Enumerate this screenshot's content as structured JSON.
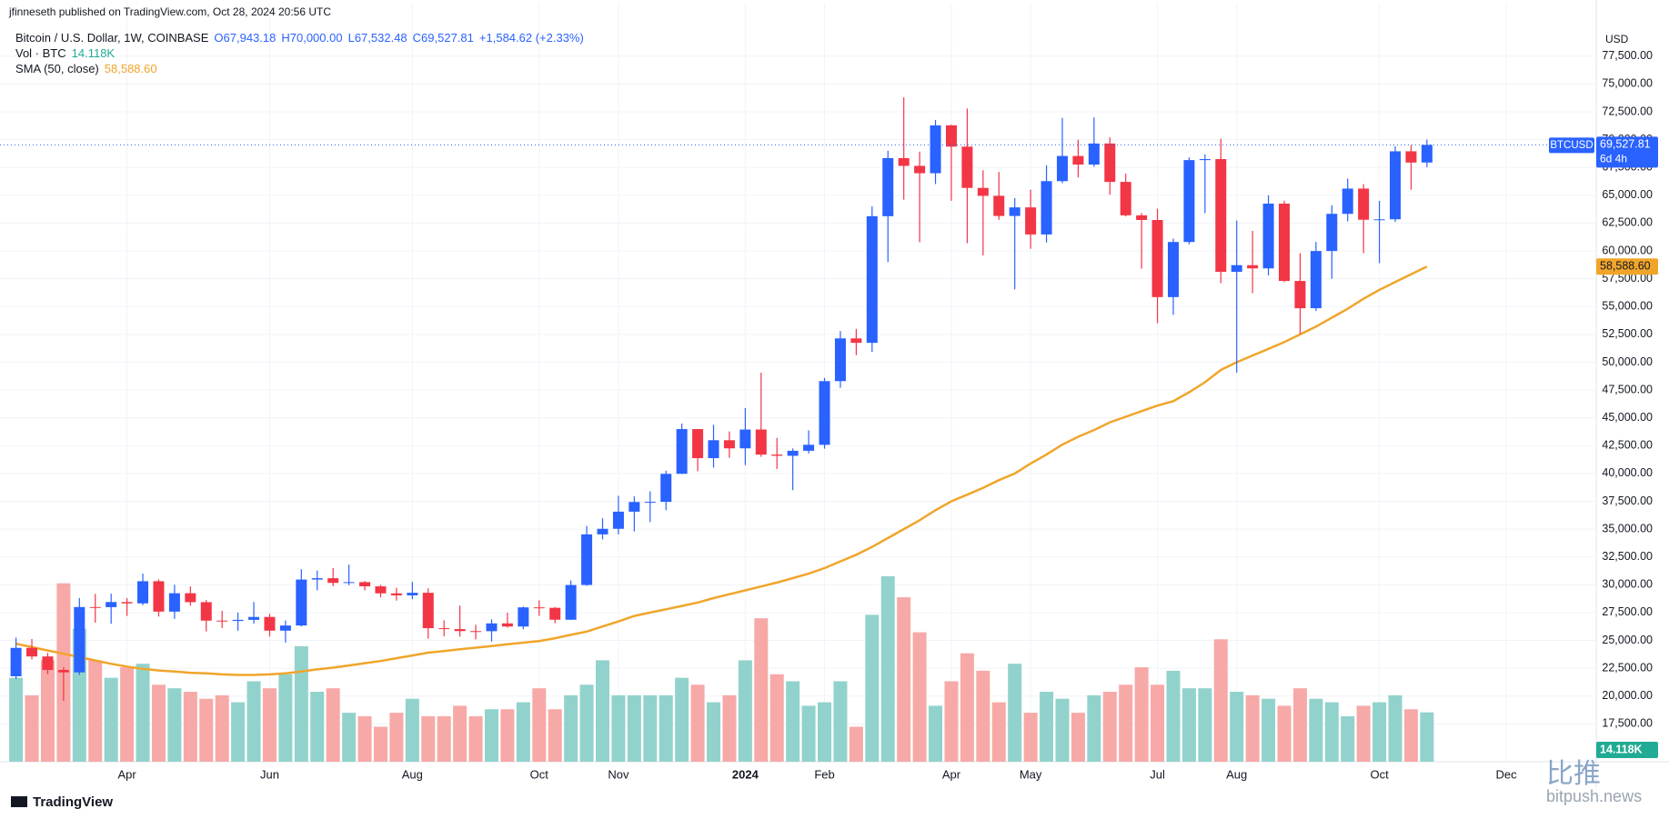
{
  "header": "jfinneseth published on TradingView.com, Oct 28, 2024 20:56 UTC",
  "footer": "TradingView",
  "watermark": {
    "brand": "比推",
    "site": "bitpush.news"
  },
  "chart_data": {
    "type": "candlestick",
    "title": "Bitcoin / U.S. Dollar, 1W, COINBASE",
    "ohlc_labels": [
      "O67,943.18",
      "H70,000.00",
      "L67,532.48",
      "C69,527.81"
    ],
    "change_label": "+1,584.62 (+2.33%)",
    "y_axis_label": "USD",
    "up_color": "#2962ff",
    "down_color": "#f23645",
    "grid": true,
    "ylim": [
      14100,
      79850
    ],
    "yticks": [
      {
        "value": 17500,
        "label": "17,500.00"
      },
      {
        "value": 20000,
        "label": "20,000.00"
      },
      {
        "value": 22500,
        "label": "22,500.00"
      },
      {
        "value": 25000,
        "label": "25,000.00"
      },
      {
        "value": 27500,
        "label": "27,500.00"
      },
      {
        "value": 30000,
        "label": "30,000.00"
      },
      {
        "value": 32500,
        "label": "32,500.00"
      },
      {
        "value": 35000,
        "label": "35,000.00"
      },
      {
        "value": 37500,
        "label": "37,500.00"
      },
      {
        "value": 40000,
        "label": "40,000.00"
      },
      {
        "value": 42500,
        "label": "42,500.00"
      },
      {
        "value": 45000,
        "label": "45,000.00"
      },
      {
        "value": 47500,
        "label": "47,500.00"
      },
      {
        "value": 50000,
        "label": "50,000.00"
      },
      {
        "value": 52500,
        "label": "52,500.00"
      },
      {
        "value": 55000,
        "label": "55,000.00"
      },
      {
        "value": 57500,
        "label": "57,500.00"
      },
      {
        "value": 60000,
        "label": "60,000.00"
      },
      {
        "value": 62500,
        "label": "62,500.00"
      },
      {
        "value": 65000,
        "label": "65,000.00"
      },
      {
        "value": 67500,
        "label": "67,500.00"
      },
      {
        "value": 70000,
        "label": "70,000.00"
      },
      {
        "value": 72500,
        "label": "72,500.00"
      },
      {
        "value": 75000,
        "label": "75,000.00"
      },
      {
        "value": 77500,
        "label": "77,500.00"
      }
    ],
    "categories": [
      null,
      null,
      null,
      null,
      null,
      null,
      null,
      "Apr",
      null,
      null,
      null,
      null,
      null,
      null,
      null,
      null,
      "Jun",
      null,
      null,
      null,
      null,
      null,
      null,
      null,
      null,
      "Aug",
      null,
      null,
      null,
      null,
      null,
      null,
      null,
      "Oct",
      null,
      null,
      null,
      null,
      "Nov",
      null,
      null,
      null,
      null,
      null,
      null,
      null,
      "2024",
      null,
      null,
      null,
      null,
      "Feb",
      null,
      null,
      null,
      null,
      null,
      null,
      null,
      "Apr",
      null,
      null,
      null,
      null,
      "May",
      null,
      null,
      null,
      null,
      null,
      null,
      null,
      "Jul",
      null,
      null,
      null,
      null,
      "Aug",
      null,
      null,
      null,
      null,
      null,
      null,
      null,
      null,
      "Oct",
      null,
      null,
      null,
      null,
      null,
      null,
      null,
      "Dec"
    ],
    "open": [
      21780,
      24330,
      23560,
      22350,
      22130,
      28000,
      27990,
      28450,
      28330,
      30320,
      27590,
      29240,
      28440,
      26780,
      26750,
      26850,
      27110,
      25880,
      26340,
      30470,
      30590,
      30170,
      30240,
      29860,
      29230,
      29050,
      29280,
      26100,
      26020,
      25840,
      25830,
      26530,
      26250,
      27970,
      27930,
      26860,
      29980,
      34530,
      35030,
      36570,
      37440,
      37450,
      39970,
      43990,
      41380,
      42990,
      42260,
      43950,
      41700,
      41590,
      42040,
      42580,
      48300,
      52140,
      51740,
      63120,
      68340,
      67640,
      66980,
      71280,
      69370,
      65660,
      64950,
      63140,
      63910,
      61480,
      66270,
      68530,
      67760,
      69650,
      66200,
      63200,
      62780,
      55850,
      60800,
      68160,
      68250,
      58120,
      58720,
      58430,
      64250,
      57300,
      54850,
      59990,
      63330,
      65600,
      62800,
      62840,
      68950,
      67943.18,
      null,
      null,
      null,
      null,
      null
    ],
    "high": [
      25250,
      25130,
      23880,
      22600,
      28800,
      29180,
      29200,
      28800,
      31000,
      30480,
      30000,
      29860,
      28630,
      27660,
      27500,
      28450,
      27400,
      26800,
      31400,
      31280,
      31500,
      31800,
      30340,
      29990,
      29730,
      30260,
      29680,
      26800,
      28130,
      26410,
      26900,
      27490,
      28040,
      28600,
      28000,
      30380,
      35280,
      35980,
      38000,
      37940,
      38400,
      40250,
      44490,
      44000,
      44380,
      43780,
      45880,
      49050,
      43200,
      42250,
      43880,
      48590,
      52800,
      52990,
      64000,
      69000,
      73800,
      68920,
      71770,
      71340,
      72800,
      67250,
      67100,
      64750,
      65500,
      67700,
      71950,
      70000,
      71990,
      70200,
      66950,
      63400,
      63790,
      61100,
      68400,
      68680,
      70080,
      62730,
      61800,
      65000,
      64500,
      59800,
      60800,
      64100,
      66500,
      66000,
      64500,
      69400,
      69500,
      70000,
      null,
      null,
      null,
      null,
      null
    ],
    "low": [
      21530,
      23300,
      21970,
      19570,
      21900,
      26600,
      26500,
      27200,
      28170,
      27140,
      26940,
      28120,
      25810,
      26110,
      25870,
      26500,
      25350,
      24800,
      26260,
      29500,
      29870,
      29960,
      29500,
      28870,
      28580,
      28700,
      25160,
      25360,
      25340,
      25090,
      24900,
      26150,
      26000,
      27200,
      26540,
      26840,
      29900,
      34080,
      34530,
      34790,
      35640,
      36700,
      39960,
      40200,
      40530,
      41400,
      40750,
      41500,
      40400,
      38500,
      41800,
      42230,
      47700,
      50630,
      50940,
      59000,
      64600,
      60780,
      66010,
      64500,
      60700,
      59600,
      62800,
      56550,
      60190,
      60760,
      66080,
      66600,
      67560,
      65050,
      63100,
      58400,
      53500,
      54260,
      60600,
      63400,
      57100,
      49050,
      56200,
      57800,
      57200,
      52550,
      54600,
      57500,
      62650,
      59800,
      58900,
      62600,
      65500,
      67532.48,
      null,
      null,
      null,
      null,
      null
    ],
    "close": [
      24330,
      23560,
      22350,
      22130,
      28000,
      27990,
      28450,
      28330,
      30320,
      27590,
      29240,
      28440,
      26780,
      26750,
      26850,
      27110,
      25880,
      26340,
      30470,
      30590,
      30170,
      30240,
      29860,
      29230,
      29050,
      29280,
      26100,
      26020,
      25840,
      25830,
      26530,
      26250,
      27970,
      27930,
      26860,
      29980,
      34530,
      35030,
      36570,
      37440,
      37450,
      39970,
      43990,
      41380,
      42990,
      42260,
      43950,
      41700,
      41590,
      42040,
      42580,
      48300,
      52140,
      51740,
      63120,
      68340,
      67640,
      66980,
      71280,
      69370,
      65660,
      64950,
      63140,
      63910,
      61480,
      66270,
      68530,
      67760,
      69650,
      66200,
      63200,
      62780,
      55850,
      60800,
      68160,
      68250,
      58120,
      58720,
      58430,
      64250,
      57300,
      54850,
      59990,
      63330,
      65600,
      62800,
      62840,
      68950,
      67940,
      69527.81,
      null,
      null,
      null,
      null,
      null
    ],
    "price_tag": {
      "symbol": "BTCUSD",
      "value_label": "69,527.81",
      "countdown": "6d 4h",
      "color": "#2962ff"
    },
    "volume": {
      "name": "Vol · BTC",
      "value_label": "14.118K",
      "up_color": "#92d2cc",
      "down_color": "#f7a9a7",
      "tag_color": "#22ab94",
      "values": [
        24,
        19,
        29,
        51,
        38,
        29,
        24,
        27,
        28,
        22,
        21,
        20,
        18,
        19,
        17,
        23,
        21,
        25,
        33,
        20,
        21,
        14,
        13,
        10,
        14,
        18,
        13,
        13,
        16,
        13,
        15,
        15,
        17,
        21,
        15,
        19,
        22,
        29,
        19,
        19,
        19,
        19,
        24,
        22,
        17,
        19,
        29,
        41,
        25,
        23,
        16,
        17,
        23,
        10,
        42,
        53,
        47,
        37,
        16,
        23,
        31,
        26,
        17,
        28,
        14,
        20,
        18,
        14,
        19,
        20,
        22,
        27,
        22,
        26,
        21,
        21,
        35,
        20,
        19,
        18,
        16,
        21,
        18,
        17,
        13,
        16,
        17,
        19,
        15,
        14.118,
        null,
        null,
        null,
        null,
        null
      ]
    },
    "sma": {
      "name": "SMA (50, close)",
      "value_label": "58,588.60",
      "color": "#f0a52a",
      "values": [
        24700,
        24400,
        24100,
        23800,
        23500,
        23200,
        22900,
        22650,
        22450,
        22300,
        22200,
        22100,
        22050,
        21950,
        21900,
        21900,
        21950,
        22050,
        22200,
        22400,
        22550,
        22750,
        22950,
        23150,
        23400,
        23650,
        23900,
        24050,
        24200,
        24350,
        24500,
        24650,
        24800,
        24950,
        25200,
        25500,
        25800,
        26250,
        26700,
        27200,
        27500,
        27800,
        28100,
        28400,
        28800,
        29150,
        29500,
        29850,
        30200,
        30600,
        31000,
        31500,
        32100,
        32700,
        33400,
        34200,
        35000,
        35800,
        36700,
        37500,
        38100,
        38700,
        39400,
        40000,
        40900,
        41700,
        42600,
        43300,
        43900,
        44600,
        45100,
        45600,
        46100,
        46500,
        47300,
        48200,
        49300,
        50000,
        50600,
        51200,
        51800,
        52500,
        53200,
        54000,
        54800,
        55700,
        56500,
        57200,
        57900,
        58588.6,
        null,
        null,
        null,
        null,
        null
      ]
    }
  }
}
